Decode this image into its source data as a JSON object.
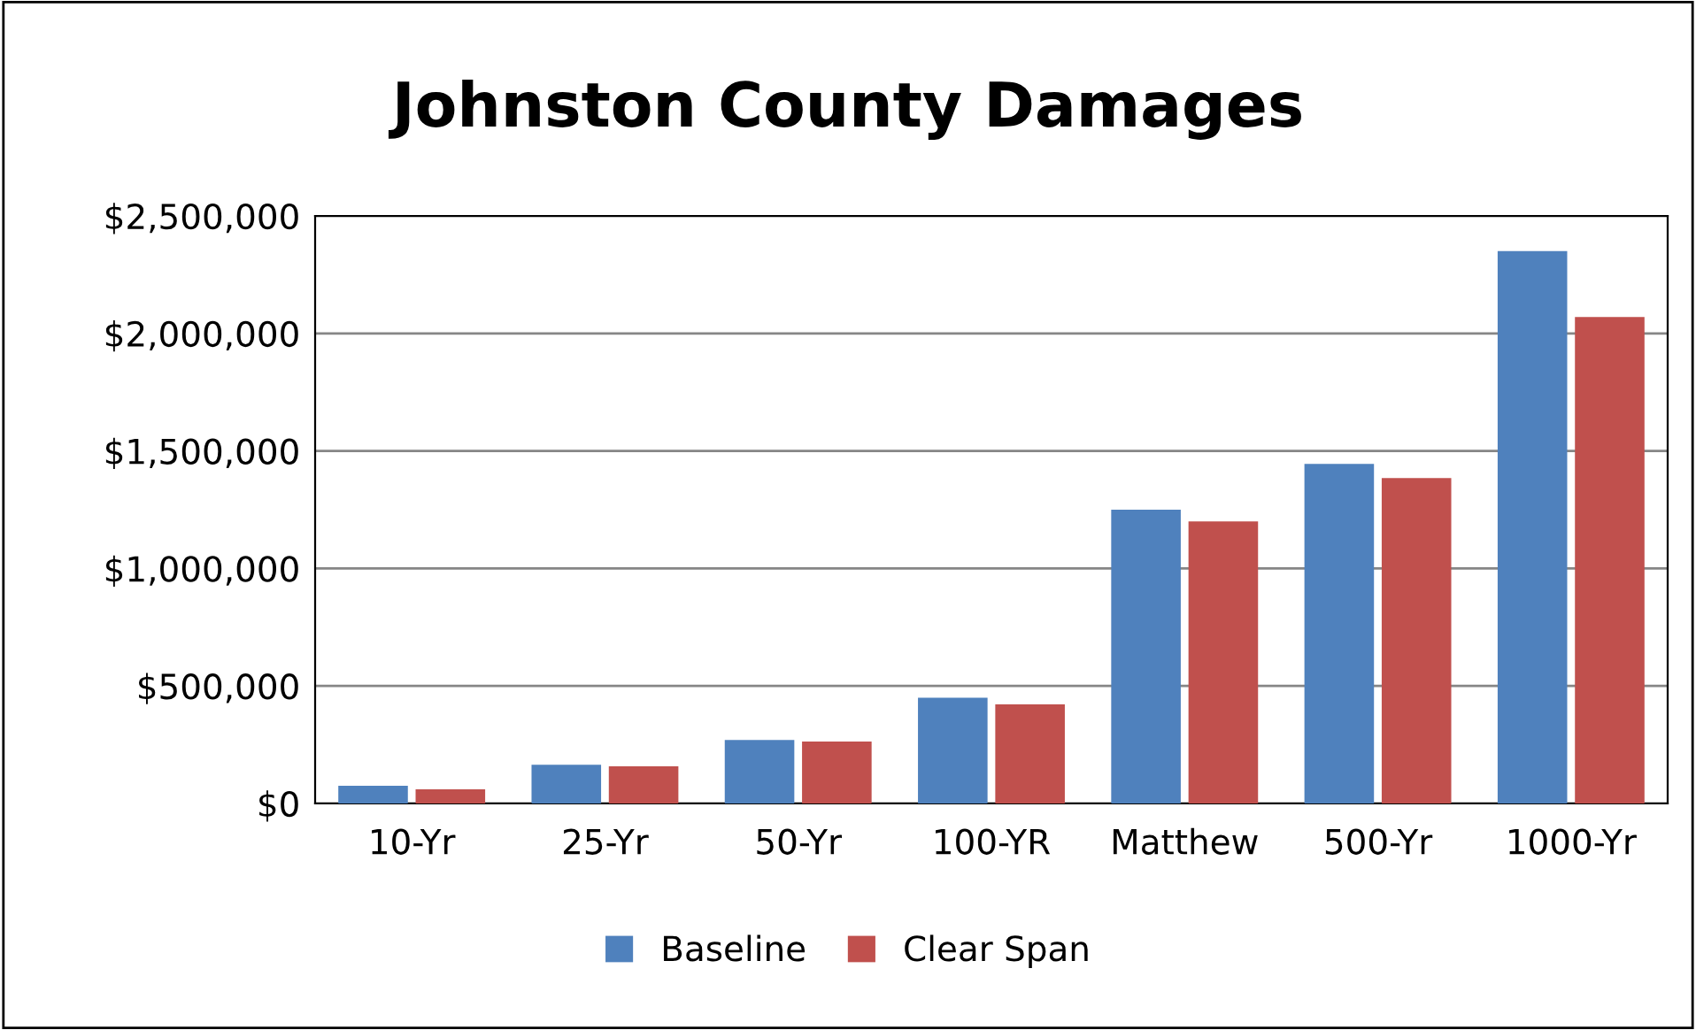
{
  "chart_data": {
    "type": "bar",
    "title": "Johnston County Damages",
    "categories": [
      "10-Yr",
      "25-Yr",
      "50-Yr",
      "100-YR",
      "Matthew",
      "500-Yr",
      "1000-Yr"
    ],
    "series": [
      {
        "name": "Baseline",
        "color": "#4f81bd",
        "values": [
          75000,
          165000,
          270000,
          450000,
          1250000,
          1445000,
          2350000
        ]
      },
      {
        "name": "Clear Span",
        "color": "#c0504d",
        "values": [
          60000,
          158000,
          264000,
          422000,
          1200000,
          1385000,
          2070000
        ]
      }
    ],
    "ylim": [
      0,
      2500000
    ],
    "yticks": [
      {
        "value": 0,
        "label": "$0"
      },
      {
        "value": 500000,
        "label": "$500,000"
      },
      {
        "value": 1000000,
        "label": "$1,000,000"
      },
      {
        "value": 1500000,
        "label": "$1,500,000"
      },
      {
        "value": 2000000,
        "label": "$2,000,000"
      },
      {
        "value": 2500000,
        "label": "$2,500,000"
      }
    ],
    "grid": "y",
    "legend": "bottom"
  }
}
